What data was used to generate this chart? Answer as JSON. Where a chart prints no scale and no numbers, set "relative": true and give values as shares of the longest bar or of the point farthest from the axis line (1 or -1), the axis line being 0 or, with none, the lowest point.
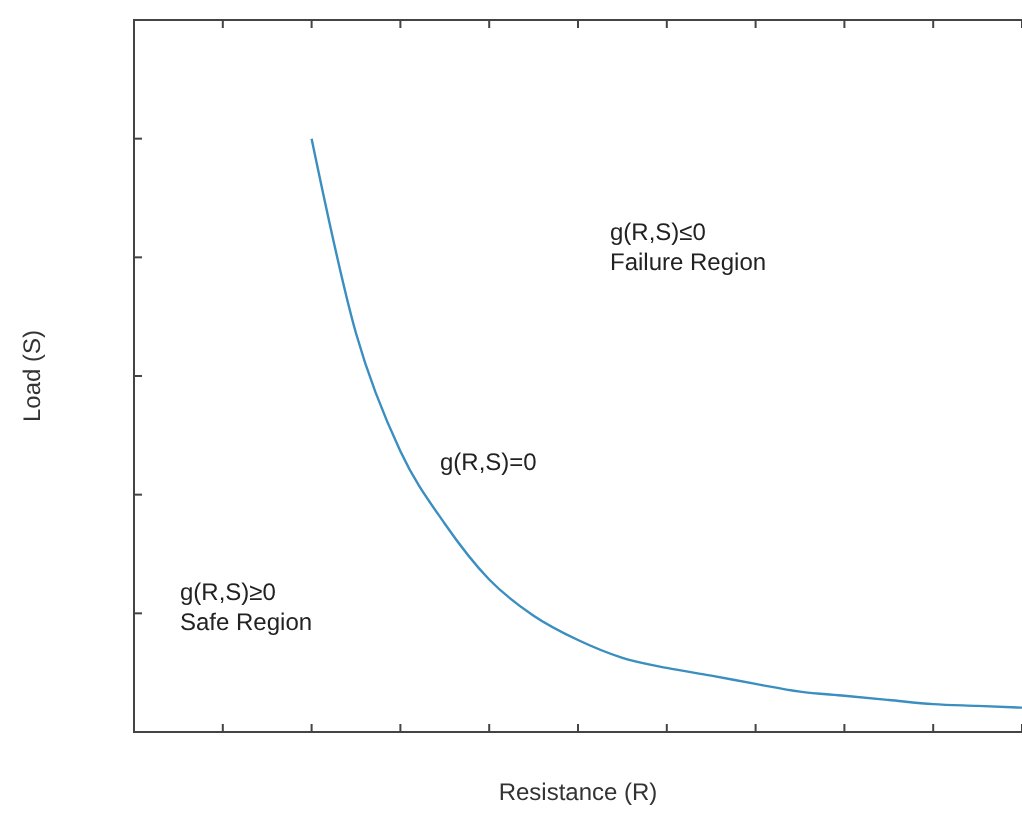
{
  "chart_data": {
    "type": "line",
    "relative": true,
    "xlabel": "Resistance (R)",
    "ylabel": "Load (S)",
    "line_style": "solid",
    "categories": [
      null,
      null,
      null,
      null,
      null,
      null,
      null,
      null,
      null,
      null,
      null,
      null,
      null,
      null,
      null,
      null,
      null,
      null,
      null,
      null,
      null
    ],
    "series": [
      {
        "color": "#3a8fc0",
        "values": [
          null,
          null,
          null,
          null,
          1,
          0.672,
          0.473,
          0.351,
          0.257,
          0.196,
          0.155,
          0.125,
          0.108,
          0.095,
          0.081,
          0.068,
          0.061,
          0.054,
          0.047,
          0.044,
          0.041
        ]
      }
    ],
    "annotations": [
      "g(R,S)≤0\nFailure Region",
      "g(R,S)=0",
      "g(R,S)≥0\nSafe Region"
    ]
  }
}
